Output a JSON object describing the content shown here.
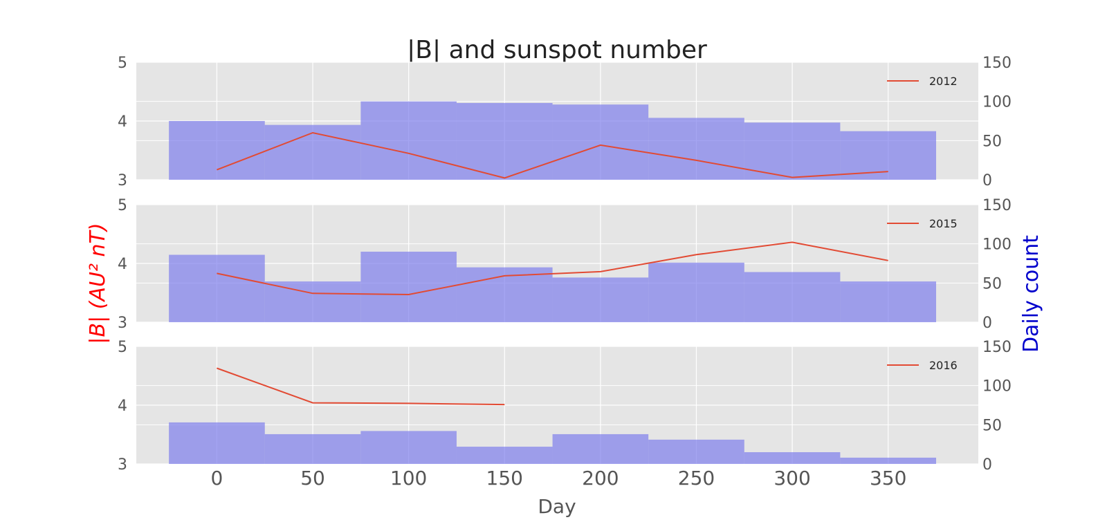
{
  "chart_data": {
    "type": "line",
    "title": "|B| and sunspot number",
    "xlabel": "Day",
    "ylabel_left": "|B| (AU² nT)",
    "ylabel_right": "Daily count",
    "left_axis_color": "#ff0000",
    "right_axis_color": "#0000cc",
    "line_color": "#e24a33",
    "bar_color": "#7b7bec",
    "plot_background": "#e5e5e5",
    "grid": true,
    "legend_placement": "top-right",
    "xlim": [
      -42,
      397
    ],
    "x_ticks": [
      0,
      50,
      100,
      150,
      200,
      250,
      300,
      350
    ],
    "bins": [
      [
        -25,
        25
      ],
      [
        25,
        75
      ],
      [
        75,
        125
      ],
      [
        125,
        175
      ],
      [
        175,
        225
      ],
      [
        225,
        275
      ],
      [
        275,
        325
      ],
      [
        325,
        375
      ]
    ],
    "panels": [
      {
        "legend": "2012",
        "ylim_left": [
          3,
          5
        ],
        "ylim_right": [
          0,
          150
        ],
        "left_ticks": [
          3,
          4,
          5
        ],
        "right_ticks": [
          0,
          50,
          100,
          150
        ],
        "line": {
          "x": [
            0,
            50,
            100,
            150,
            200,
            250,
            300,
            350
          ],
          "y": [
            3.17,
            3.8,
            3.45,
            3.03,
            3.59,
            3.33,
            3.04,
            3.14
          ]
        },
        "bars": [
          75,
          70,
          100,
          98,
          96,
          79,
          73,
          62
        ]
      },
      {
        "legend": "2015",
        "ylim_left": [
          3,
          5
        ],
        "ylim_right": [
          0,
          150
        ],
        "left_ticks": [
          3,
          4,
          5
        ],
        "right_ticks": [
          0,
          50,
          100,
          150
        ],
        "line": {
          "x": [
            0,
            50,
            100,
            150,
            200,
            250,
            300,
            350
          ],
          "y": [
            3.83,
            3.49,
            3.47,
            3.79,
            3.86,
            4.15,
            4.36,
            4.05
          ]
        },
        "bars": [
          86,
          52,
          90,
          70,
          57,
          76,
          64,
          52
        ]
      },
      {
        "legend": "2016",
        "ylim_left": [
          3,
          5
        ],
        "ylim_right": [
          0,
          150
        ],
        "left_ticks": [
          3,
          4,
          5
        ],
        "right_ticks": [
          0,
          50,
          100,
          150
        ],
        "line": {
          "x": [
            0,
            50,
            100,
            150
          ],
          "y": [
            4.63,
            4.04,
            4.03,
            4.01
          ]
        },
        "bars": [
          53,
          38,
          42,
          22,
          38,
          31,
          15,
          8
        ]
      }
    ]
  }
}
